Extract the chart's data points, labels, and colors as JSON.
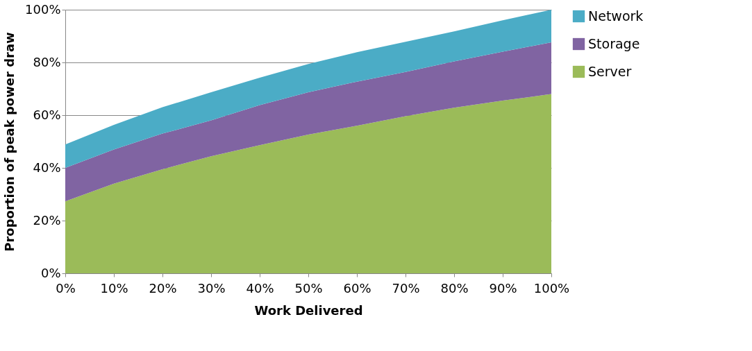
{
  "chart_data": {
    "type": "area",
    "stacked": true,
    "xlabel": "Work Delivered",
    "ylabel": "Proportion of peak power draw",
    "x": [
      0,
      10,
      20,
      30,
      40,
      50,
      60,
      70,
      80,
      90,
      100
    ],
    "series": [
      {
        "name": "Server",
        "color": "#9bbb59",
        "values": [
          27.3,
          34,
          39.5,
          44.4,
          48.6,
          52.6,
          56,
          59.6,
          62.8,
          65.5,
          68
        ]
      },
      {
        "name": "Storage",
        "color": "#8064a2",
        "values": [
          12.7,
          13,
          13.5,
          13.6,
          15.2,
          16.1,
          16.7,
          16.8,
          17.6,
          18.6,
          19.6
        ]
      },
      {
        "name": "Network",
        "color": "#4bacc6",
        "values": [
          8.9,
          9.3,
          10,
          10.7,
          10.4,
          10.7,
          11.2,
          11.4,
          11.4,
          11.9,
          12.4
        ]
      }
    ],
    "xlim": [
      0,
      100
    ],
    "xticks": [
      {
        "value": 0,
        "label": "0%"
      },
      {
        "value": 10,
        "label": "10%"
      },
      {
        "value": 20,
        "label": "20%"
      },
      {
        "value": 30,
        "label": "30%"
      },
      {
        "value": 40,
        "label": "40%"
      },
      {
        "value": 50,
        "label": "50%"
      },
      {
        "value": 60,
        "label": "60%"
      },
      {
        "value": 70,
        "label": "70%"
      },
      {
        "value": 80,
        "label": "80%"
      },
      {
        "value": 90,
        "label": "90%"
      },
      {
        "value": 100,
        "label": "100%"
      }
    ],
    "ylim": [
      0,
      100
    ],
    "yticks": [
      {
        "value": 0,
        "label": "0%"
      },
      {
        "value": 20,
        "label": "20%"
      },
      {
        "value": 40,
        "label": "40%"
      },
      {
        "value": 60,
        "label": "60%"
      },
      {
        "value": 80,
        "label": "80%"
      },
      {
        "value": 100,
        "label": "100%"
      }
    ],
    "grid": "y",
    "legend": "right"
  }
}
